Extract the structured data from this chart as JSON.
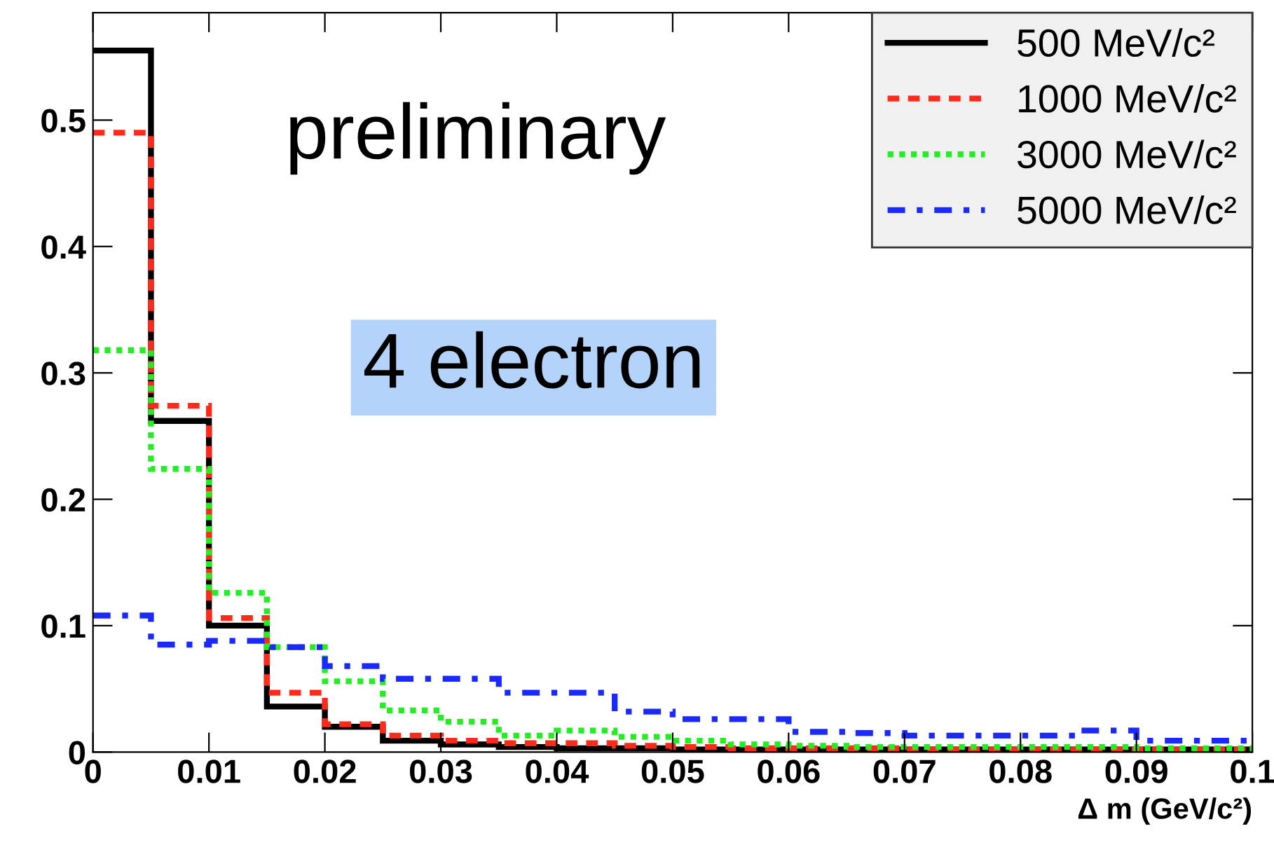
{
  "chart_data": {
    "type": "histogram",
    "xlabel": "Δ m (GeV/c²)",
    "bins": [
      0,
      0.005,
      0.01,
      0.015,
      0.02,
      0.025,
      0.03,
      0.035,
      0.04,
      0.045,
      0.05,
      0.055,
      0.06,
      0.065,
      0.07,
      0.075,
      0.08,
      0.085,
      0.09,
      0.095,
      0.1
    ],
    "series": [
      {
        "name": "500 MeV/c²",
        "color": "#000000",
        "line_style": "solid",
        "values": [
          0.555,
          0.262,
          0.1,
          0.036,
          0.02,
          0.009,
          0.006,
          0.004,
          0.003,
          0.003,
          0.002,
          0.002,
          0.002,
          0.002,
          0.002,
          0.002,
          0.002,
          0.002,
          0.002,
          0.002
        ]
      },
      {
        "name": "1000 MeV/c²",
        "color": "#ff2a1a",
        "line_style": "dashed",
        "values": [
          0.49,
          0.274,
          0.106,
          0.047,
          0.022,
          0.013,
          0.009,
          0.007,
          0.007,
          0.005,
          0.004,
          0.003,
          0.003,
          0.003,
          0.002,
          0.002,
          0.002,
          0.002,
          0.002,
          0.002
        ]
      },
      {
        "name": "3000 MeV/c²",
        "color": "#22ee22",
        "line_style": "dotted",
        "values": [
          0.318,
          0.224,
          0.126,
          0.083,
          0.056,
          0.033,
          0.024,
          0.013,
          0.017,
          0.012,
          0.009,
          0.006,
          0.005,
          0.004,
          0.004,
          0.004,
          0.004,
          0.004,
          0.003,
          0.003
        ]
      },
      {
        "name": "5000 MeV/c²",
        "color": "#1a2aff",
        "line_style": "dashdot",
        "values": [
          0.108,
          0.085,
          0.088,
          0.083,
          0.068,
          0.058,
          0.058,
          0.047,
          0.047,
          0.032,
          0.026,
          0.026,
          0.016,
          0.015,
          0.013,
          0.013,
          0.013,
          0.017,
          0.009,
          0.009
        ]
      }
    ],
    "xlim": [
      0,
      0.1
    ],
    "ylim": [
      0,
      0.585
    ],
    "xticks": [
      0,
      0.01,
      0.02,
      0.03,
      0.04,
      0.05,
      0.06,
      0.07,
      0.08,
      0.09,
      0.1
    ],
    "yticks": [
      0,
      0.1,
      0.2,
      0.3,
      0.4,
      0.5
    ],
    "annotations": [
      "preliminary",
      "4 electron"
    ],
    "legend": "top right",
    "grid": false
  }
}
